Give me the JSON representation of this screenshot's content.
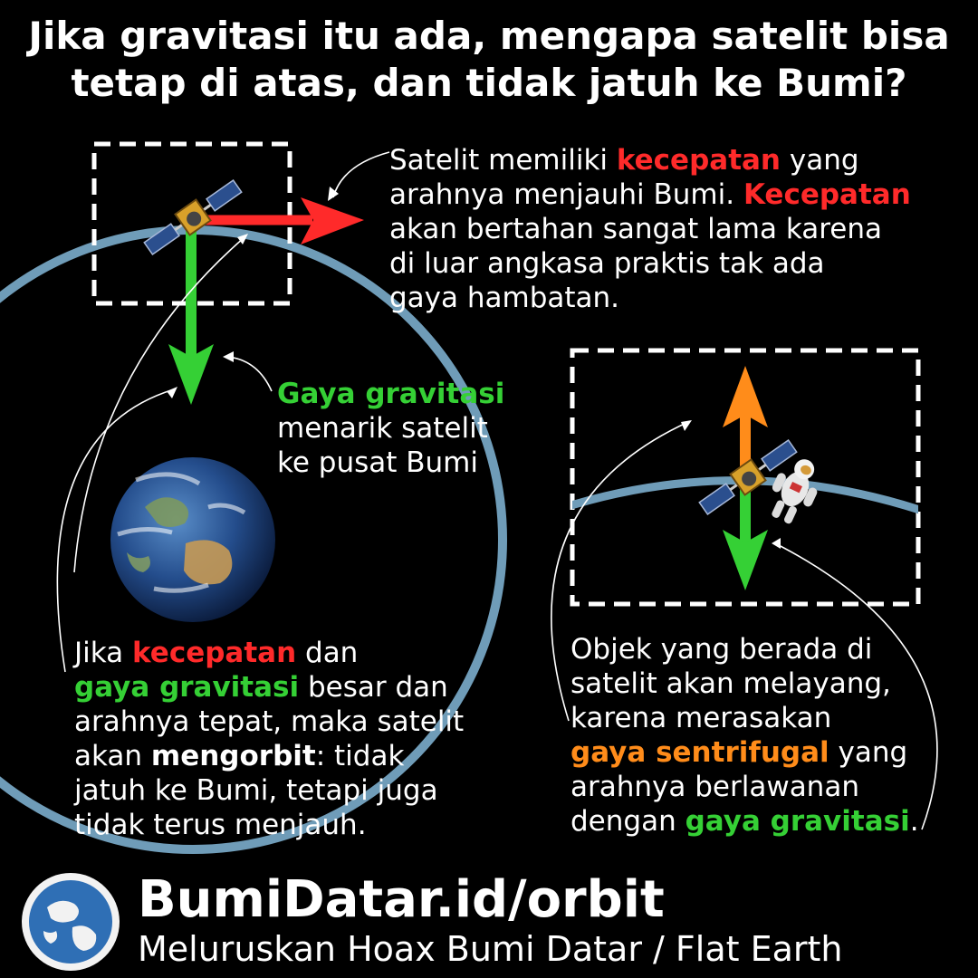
{
  "title": {
    "line1": "Jika gravitasi itu ada, mengapa satelit bisa",
    "line2": "tetap di atas, dan tidak jatuh ke Bumi?"
  },
  "velocity_box": {
    "p1": "Satelit memiliki ",
    "h1": "kecepatan",
    "p2": " yang",
    "p3": "arahnya menjauhi Bumi. ",
    "h2": "Kecepatan",
    "p4": "akan bertahan sangat lama karena",
    "p5": "di luar angkasa praktis tak ada",
    "p6": "gaya hambatan."
  },
  "gravity_box": {
    "h1": "Gaya gravitasi",
    "p1": "menarik satelit",
    "p2": "ke pusat Bumi"
  },
  "orbit_box": {
    "p1": "Jika ",
    "h1": "kecepatan",
    "p2": " dan",
    "h2": "gaya gravitasi",
    "p3": " besar dan",
    "p4": "arahnya tepat, maka satelit",
    "p5": "akan ",
    "h3": "mengorbit",
    "p6": ": tidak",
    "p7": "jatuh ke Bumi, tetapi juga",
    "p8": "tidak terus menjauh."
  },
  "float_box": {
    "p1": "Objek yang berada di",
    "p2": "satelit akan melayang,",
    "p3": "karena merasakan",
    "h1": "gaya sentrifugal",
    "p4": " yang",
    "p5": "arahnya berlawanan",
    "p6": "dengan ",
    "h2": "gaya gravitasi",
    "p7": "."
  },
  "footer": {
    "brand": "BumiDatar.id/orbit",
    "tagline": "Meluruskan Hoax Bumi Datar / Flat Earth"
  },
  "colors": {
    "velocity": "#ff2a2a",
    "gravity": "#35d035",
    "centrifugal": "#ff8c1a",
    "orbit": "#6f9cb8",
    "background": "#000000"
  },
  "icons": [
    "satellite-icon",
    "earth-globe-icon",
    "astronaut-icon",
    "logo-globe-icon"
  ]
}
